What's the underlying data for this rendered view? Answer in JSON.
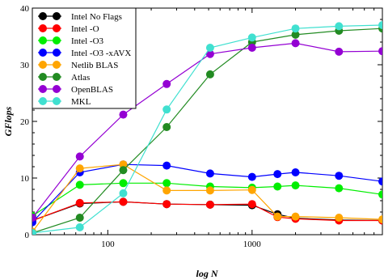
{
  "chart_data": {
    "type": "line",
    "xlabel": "log N",
    "ylabel": "GFlops",
    "x_scale": "log",
    "xlim": [
      30,
      8000
    ],
    "ylim": [
      0,
      40
    ],
    "x_ticks": [
      100,
      1000
    ],
    "y_ticks": [
      0,
      10,
      20,
      30,
      40
    ],
    "grid": false,
    "legend_position": "top-left",
    "series": [
      {
        "name": "Intel No Flags",
        "color": "#000000",
        "x": [
          30,
          64,
          128,
          256,
          512,
          1000,
          1500,
          2000,
          4000,
          8000
        ],
        "y": [
          2.5,
          5.5,
          5.8,
          5.4,
          5.3,
          5.2,
          3.6,
          2.9,
          2.6,
          2.5
        ]
      },
      {
        "name": "Intel -O",
        "color": "#ff0000",
        "x": [
          30,
          64,
          128,
          256,
          512,
          1000,
          1500,
          2000,
          4000,
          8000
        ],
        "y": [
          2.5,
          5.6,
          5.8,
          5.4,
          5.3,
          5.4,
          3.1,
          2.8,
          2.5,
          2.5
        ]
      },
      {
        "name": "Intel -O3",
        "color": "#00ee00",
        "x": [
          30,
          64,
          128,
          256,
          512,
          1000,
          1500,
          2000,
          4000,
          8000
        ],
        "y": [
          3.3,
          8.8,
          9.1,
          9.1,
          8.5,
          8.3,
          8.5,
          8.7,
          8.2,
          7.1
        ]
      },
      {
        "name": "Intel -O3 -xAVX",
        "color": "#0000ff",
        "x": [
          30,
          64,
          128,
          256,
          512,
          1000,
          1500,
          2000,
          4000,
          8000
        ],
        "y": [
          2.2,
          11.0,
          12.4,
          12.2,
          10.8,
          10.2,
          10.7,
          11.0,
          10.4,
          9.4
        ]
      },
      {
        "name": "Netlib BLAS",
        "color": "#ffa500",
        "x": [
          30,
          64,
          128,
          256,
          512,
          1000,
          1500,
          2000,
          4000,
          8000
        ],
        "y": [
          0.5,
          11.7,
          12.4,
          7.8,
          7.8,
          7.9,
          3.2,
          3.2,
          3.0,
          2.7
        ]
      },
      {
        "name": "Atlas",
        "color": "#228b22",
        "x": [
          30,
          64,
          128,
          256,
          512,
          1000,
          2000,
          4000,
          8000
        ],
        "y": [
          0.3,
          3.0,
          11.4,
          19.0,
          28.3,
          34.0,
          35.3,
          36.0,
          36.4
        ]
      },
      {
        "name": "OpenBLAS",
        "color": "#9400d3",
        "x": [
          30,
          64,
          128,
          256,
          512,
          1000,
          2000,
          4000,
          8000
        ],
        "y": [
          3.0,
          13.8,
          21.2,
          26.6,
          31.9,
          33.0,
          33.8,
          32.3,
          32.4
        ]
      },
      {
        "name": "MKL",
        "color": "#40e0d0",
        "x": [
          30,
          64,
          128,
          256,
          512,
          1000,
          2000,
          4000,
          8000
        ],
        "y": [
          0.3,
          1.3,
          7.3,
          22.1,
          33.0,
          34.8,
          36.4,
          36.8,
          37.0
        ]
      }
    ]
  }
}
